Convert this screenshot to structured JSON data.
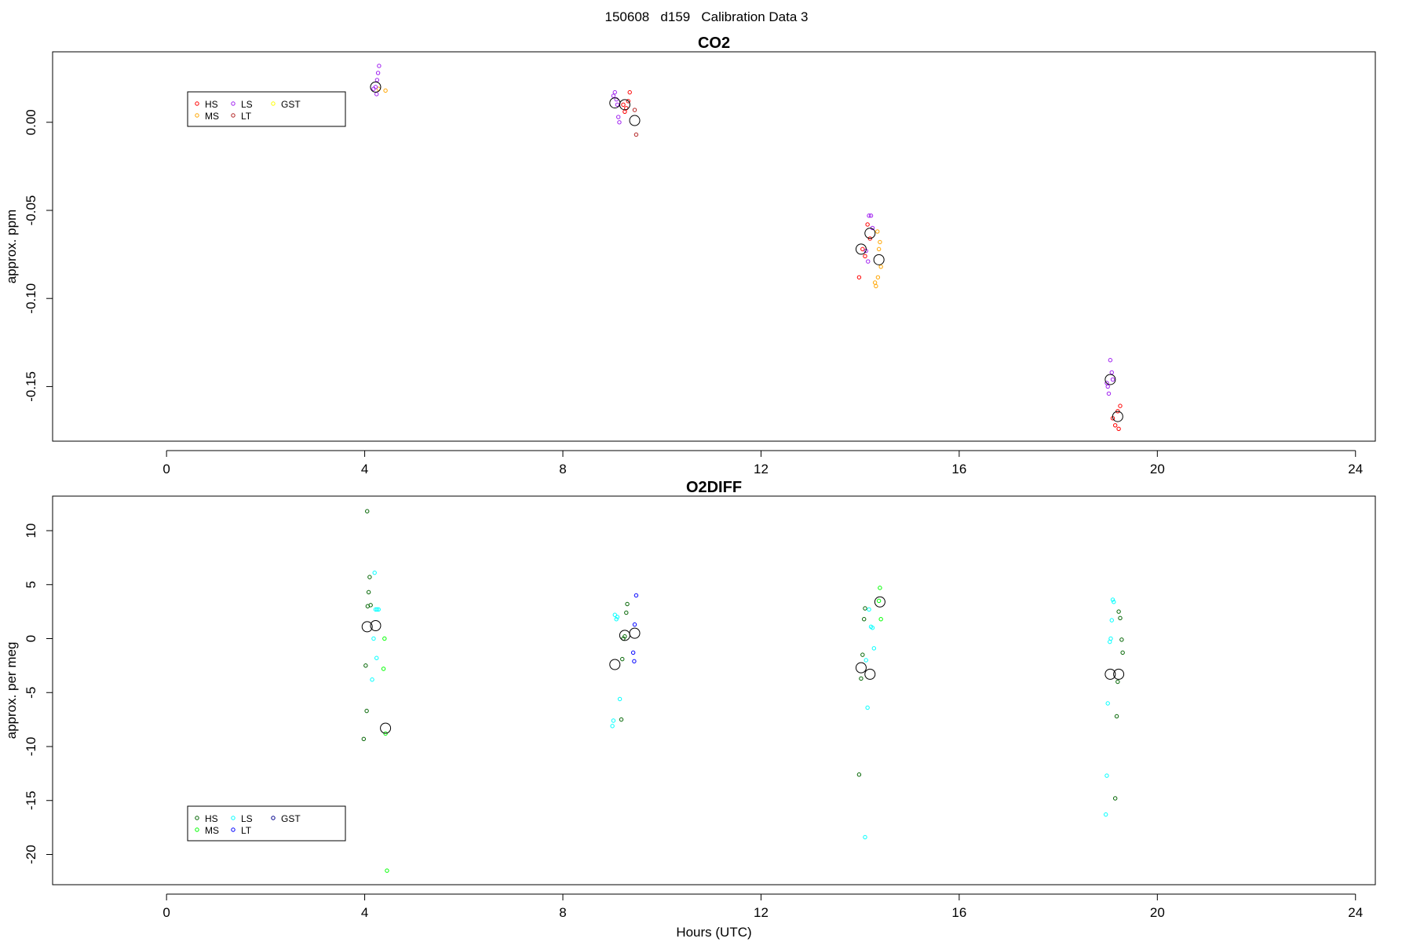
{
  "page_title": "150608   d159   Calibration Data 3",
  "chart_data": [
    {
      "type": "scatter",
      "title": "CO2",
      "xlabel": "",
      "ylabel": "approx. ppm",
      "xlim": [
        -2.3,
        24.4
      ],
      "ylim": [
        -0.181,
        0.04
      ],
      "xticks": [
        0,
        4,
        8,
        12,
        16,
        20,
        24
      ],
      "yticks": [
        0.0,
        -0.05,
        -0.1,
        -0.15
      ],
      "ytick_labels": [
        "0.00",
        "-0.05",
        "-0.10",
        "-0.15"
      ],
      "legend": {
        "placement": "top-left",
        "entries": [
          {
            "label": "HS",
            "color": "#ff0000"
          },
          {
            "label": "MS",
            "color": "#ffa500"
          },
          {
            "label": "LS",
            "color": "#a020f0"
          },
          {
            "label": "LT",
            "color": "#b22222"
          },
          {
            "label": "GST",
            "color": "#ffff00"
          }
        ]
      },
      "series": [
        {
          "name": "HS",
          "color": "#ff0000",
          "points": [
            [
              9.22,
              0.01
            ],
            [
              9.28,
              0.008
            ],
            [
              9.32,
              0.012
            ],
            [
              9.35,
              0.017
            ],
            [
              9.25,
              0.006
            ],
            [
              14.05,
              -0.072
            ],
            [
              14.1,
              -0.076
            ],
            [
              14.15,
              -0.058
            ],
            [
              14.2,
              -0.066
            ],
            [
              13.98,
              -0.088
            ],
            [
              19.15,
              -0.172
            ],
            [
              19.2,
              -0.164
            ],
            [
              19.25,
              -0.161
            ],
            [
              19.1,
              -0.168
            ],
            [
              19.22,
              -0.174
            ]
          ]
        },
        {
          "name": "MS",
          "color": "#ffa500",
          "points": [
            [
              4.28,
              0.019
            ],
            [
              4.42,
              0.018
            ],
            [
              14.35,
              -0.062
            ],
            [
              14.4,
              -0.068
            ],
            [
              14.38,
              -0.072
            ],
            [
              14.42,
              -0.082
            ],
            [
              14.3,
              -0.091
            ],
            [
              14.32,
              -0.093
            ],
            [
              14.36,
              -0.088
            ]
          ]
        },
        {
          "name": "LS",
          "color": "#a020f0",
          "points": [
            [
              4.22,
              0.02
            ],
            [
              4.25,
              0.024
            ],
            [
              4.27,
              0.028
            ],
            [
              4.29,
              0.032
            ],
            [
              4.18,
              0.019
            ],
            [
              4.24,
              0.016
            ],
            [
              9.02,
              0.015
            ],
            [
              9.05,
              0.017
            ],
            [
              9.08,
              0.013
            ],
            [
              9.12,
              0.003
            ],
            [
              9.14,
              0.0
            ],
            [
              9.1,
              0.01
            ],
            [
              14.18,
              -0.053
            ],
            [
              14.22,
              -0.053
            ],
            [
              14.25,
              -0.06
            ],
            [
              14.12,
              -0.073
            ],
            [
              14.16,
              -0.079
            ],
            [
              19.05,
              -0.135
            ],
            [
              19.08,
              -0.142
            ],
            [
              19.1,
              -0.146
            ],
            [
              18.98,
              -0.148
            ],
            [
              19.02,
              -0.154
            ],
            [
              19.0,
              -0.15
            ]
          ]
        },
        {
          "name": "LT",
          "color": "#b22222",
          "points": [
            [
              9.45,
              0.007
            ],
            [
              9.48,
              -0.007
            ]
          ]
        },
        {
          "name": "GST",
          "color": "#ffff00",
          "points": []
        }
      ],
      "means": [
        [
          4.22,
          0.02
        ],
        [
          9.05,
          0.011
        ],
        [
          9.25,
          0.01
        ],
        [
          9.45,
          0.001
        ],
        [
          14.02,
          -0.072
        ],
        [
          14.2,
          -0.063
        ],
        [
          14.38,
          -0.078
        ],
        [
          19.05,
          -0.146
        ],
        [
          19.2,
          -0.167
        ]
      ]
    },
    {
      "type": "scatter",
      "title": "O2DIFF",
      "xlabel": "Hours (UTC)",
      "ylabel": "approx. per meg",
      "xlim": [
        -2.3,
        24.4
      ],
      "ylim": [
        -22.8,
        13.2
      ],
      "xticks": [
        0,
        4,
        8,
        12,
        16,
        20,
        24
      ],
      "yticks": [
        10,
        5,
        0,
        -5,
        -10,
        -15,
        -20
      ],
      "ytick_labels": [
        "10",
        "5",
        "0",
        "-5",
        "-10",
        "-15",
        "-20"
      ],
      "legend": {
        "placement": "bottom-left",
        "entries": [
          {
            "label": "HS",
            "color": "#006400"
          },
          {
            "label": "MS",
            "color": "#00ff00"
          },
          {
            "label": "LS",
            "color": "#00ffff"
          },
          {
            "label": "LT",
            "color": "#0000ff"
          },
          {
            "label": "GST",
            "color": "#00008b"
          }
        ]
      },
      "series": [
        {
          "name": "HS",
          "color": "#006400",
          "points": [
            [
              4.05,
              11.8
            ],
            [
              4.08,
              4.3
            ],
            [
              4.1,
              5.7
            ],
            [
              4.06,
              3.0
            ],
            [
              4.12,
              3.1
            ],
            [
              4.02,
              -2.5
            ],
            [
              4.04,
              -6.7
            ],
            [
              3.98,
              -9.3
            ],
            [
              9.3,
              3.2
            ],
            [
              9.28,
              2.4
            ],
            [
              9.25,
              0.2
            ],
            [
              9.22,
              0.0
            ],
            [
              9.2,
              -1.9
            ],
            [
              9.18,
              -7.5
            ],
            [
              14.1,
              2.8
            ],
            [
              14.08,
              1.8
            ],
            [
              14.05,
              -1.5
            ],
            [
              13.98,
              -12.6
            ],
            [
              14.02,
              -3.7
            ],
            [
              19.22,
              2.5
            ],
            [
              19.25,
              1.9
            ],
            [
              19.28,
              -0.1
            ],
            [
              19.3,
              -1.3
            ],
            [
              19.2,
              -4.0
            ],
            [
              19.18,
              -7.2
            ],
            [
              19.15,
              -14.8
            ]
          ]
        },
        {
          "name": "MS",
          "color": "#00ff00",
          "points": [
            [
              4.4,
              0.0
            ],
            [
              4.38,
              -2.8
            ],
            [
              4.42,
              -8.8
            ],
            [
              4.45,
              -21.5
            ],
            [
              14.4,
              4.7
            ],
            [
              14.42,
              1.8
            ],
            [
              14.38,
              3.5
            ]
          ]
        },
        {
          "name": "LS",
          "color": "#00ffff",
          "points": [
            [
              4.2,
              6.1
            ],
            [
              4.22,
              2.7
            ],
            [
              4.25,
              2.7
            ],
            [
              4.28,
              2.7
            ],
            [
              4.18,
              0.0
            ],
            [
              4.24,
              -1.8
            ],
            [
              4.15,
              -3.8
            ],
            [
              9.05,
              2.2
            ],
            [
              9.08,
              1.8
            ],
            [
              9.1,
              2.0
            ],
            [
              9.15,
              -5.6
            ],
            [
              9.02,
              -7.6
            ],
            [
              9.0,
              -8.1
            ],
            [
              14.22,
              1.1
            ],
            [
              14.25,
              1.0
            ],
            [
              14.28,
              -0.9
            ],
            [
              14.18,
              2.7
            ],
            [
              14.12,
              -2.0
            ],
            [
              14.15,
              -6.4
            ],
            [
              14.1,
              -18.4
            ],
            [
              19.1,
              3.6
            ],
            [
              19.12,
              3.4
            ],
            [
              19.08,
              1.7
            ],
            [
              19.06,
              0.0
            ],
            [
              19.04,
              -0.3
            ],
            [
              19.0,
              -6.0
            ],
            [
              18.98,
              -12.7
            ],
            [
              18.96,
              -16.3
            ]
          ]
        },
        {
          "name": "LT",
          "color": "#0000ff",
          "points": [
            [
              9.48,
              4.0
            ],
            [
              9.45,
              1.3
            ],
            [
              9.42,
              -1.3
            ],
            [
              9.44,
              -2.1
            ]
          ]
        },
        {
          "name": "GST",
          "color": "#00008b",
          "points": []
        }
      ],
      "means": [
        [
          4.05,
          1.1
        ],
        [
          4.22,
          1.2
        ],
        [
          4.42,
          -8.3
        ],
        [
          9.05,
          -2.4
        ],
        [
          9.25,
          0.3
        ],
        [
          9.45,
          0.5
        ],
        [
          14.02,
          -2.7
        ],
        [
          14.2,
          -3.3
        ],
        [
          14.4,
          3.4
        ],
        [
          19.05,
          -3.3
        ],
        [
          19.22,
          -3.3
        ]
      ]
    }
  ]
}
